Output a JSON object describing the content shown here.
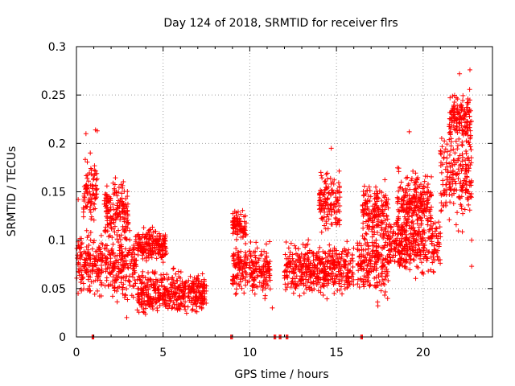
{
  "chart_data": {
    "type": "scatter",
    "title": "Day 124 of 2018, SRMTID for receiver flrs",
    "xlabel": "GPS time / hours",
    "ylabel": "SRMTID / TECUs",
    "xlim": [
      0,
      24
    ],
    "ylim": [
      0,
      0.3
    ],
    "x_ticks": [
      0,
      5,
      10,
      15,
      20
    ],
    "x_tick_labels": [
      "0",
      "5",
      "10",
      "15",
      "20"
    ],
    "y_ticks": [
      0,
      0.05,
      0.1,
      0.15,
      0.2,
      0.25,
      0.3
    ],
    "y_tick_labels": [
      "0",
      "0.05",
      "0.1",
      "0.15",
      "0.2",
      "0.25",
      "0.3"
    ],
    "grid": true,
    "marker": "+",
    "color": "#ff0000",
    "series": [
      {
        "name": "SRMTID",
        "segments": [
          {
            "x_start": 0.0,
            "x_end": 1.0,
            "y_mean": 0.075,
            "y_spread": 0.04
          },
          {
            "x_start": 0.4,
            "x_end": 1.2,
            "y_mean": 0.15,
            "y_spread": 0.05
          },
          {
            "x_start": 1.0,
            "x_end": 3.5,
            "y_mean": 0.075,
            "y_spread": 0.045
          },
          {
            "x_start": 1.6,
            "x_end": 3.0,
            "y_mean": 0.13,
            "y_spread": 0.04
          },
          {
            "x_start": 3.5,
            "x_end": 7.5,
            "y_mean": 0.045,
            "y_spread": 0.03
          },
          {
            "x_start": 3.5,
            "x_end": 5.2,
            "y_mean": 0.095,
            "y_spread": 0.025
          },
          {
            "x_start": 9.0,
            "x_end": 11.2,
            "y_mean": 0.07,
            "y_spread": 0.035
          },
          {
            "x_start": 9.0,
            "x_end": 9.8,
            "y_mean": 0.115,
            "y_spread": 0.02
          },
          {
            "x_start": 12.0,
            "x_end": 16.0,
            "y_mean": 0.07,
            "y_spread": 0.035
          },
          {
            "x_start": 14.0,
            "x_end": 15.2,
            "y_mean": 0.14,
            "y_spread": 0.04
          },
          {
            "x_start": 16.2,
            "x_end": 18.0,
            "y_mean": 0.075,
            "y_spread": 0.05
          },
          {
            "x_start": 16.5,
            "x_end": 18.0,
            "y_mean": 0.13,
            "y_spread": 0.04
          },
          {
            "x_start": 18.0,
            "x_end": 21.0,
            "y_mean": 0.095,
            "y_spread": 0.04
          },
          {
            "x_start": 18.5,
            "x_end": 20.5,
            "y_mean": 0.14,
            "y_spread": 0.04
          },
          {
            "x_start": 21.0,
            "x_end": 22.8,
            "y_mean": 0.165,
            "y_spread": 0.06
          },
          {
            "x_start": 21.5,
            "x_end": 22.8,
            "y_mean": 0.225,
            "y_spread": 0.035
          }
        ],
        "outliers": [
          {
            "x": 0.55,
            "y": 0.21
          },
          {
            "x": 1.1,
            "y": 0.214
          },
          {
            "x": 1.2,
            "y": 0.213
          },
          {
            "x": 14.7,
            "y": 0.195
          },
          {
            "x": 19.2,
            "y": 0.212
          },
          {
            "x": 22.1,
            "y": 0.272
          },
          {
            "x": 22.7,
            "y": 0.276
          },
          {
            "x": 22.8,
            "y": 0.1
          },
          {
            "x": 22.8,
            "y": 0.073
          },
          {
            "x": 20.05,
            "y": 0.15
          },
          {
            "x": 11.3,
            "y": 0.03
          },
          {
            "x": 0.1,
            "y": 0.142
          },
          {
            "x": 2.9,
            "y": 0.02
          },
          {
            "x": 14.1,
            "y": 0.17
          }
        ],
        "zero_markers": [
          0.9,
          8.9,
          11.4,
          11.7,
          12.1,
          16.4
        ]
      }
    ]
  }
}
